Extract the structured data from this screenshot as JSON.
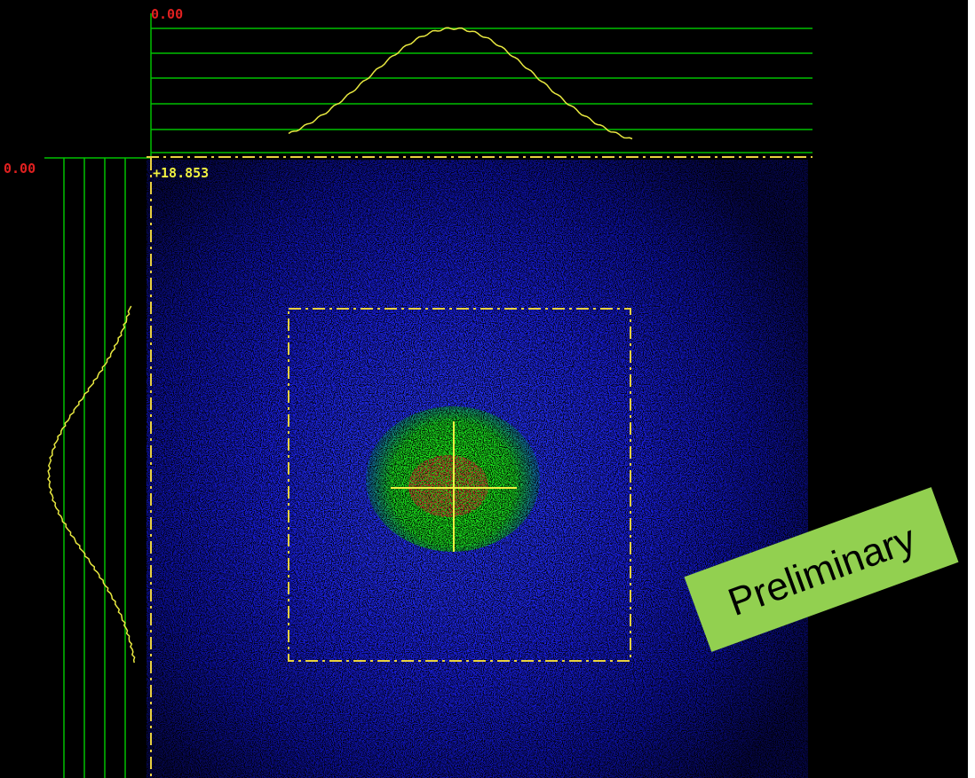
{
  "top_profile": {
    "scale_label": "0.00"
  },
  "left_profile": {
    "scale_label": "0.00"
  },
  "position_readout": "+18.853",
  "watermark": "Preliminary"
}
